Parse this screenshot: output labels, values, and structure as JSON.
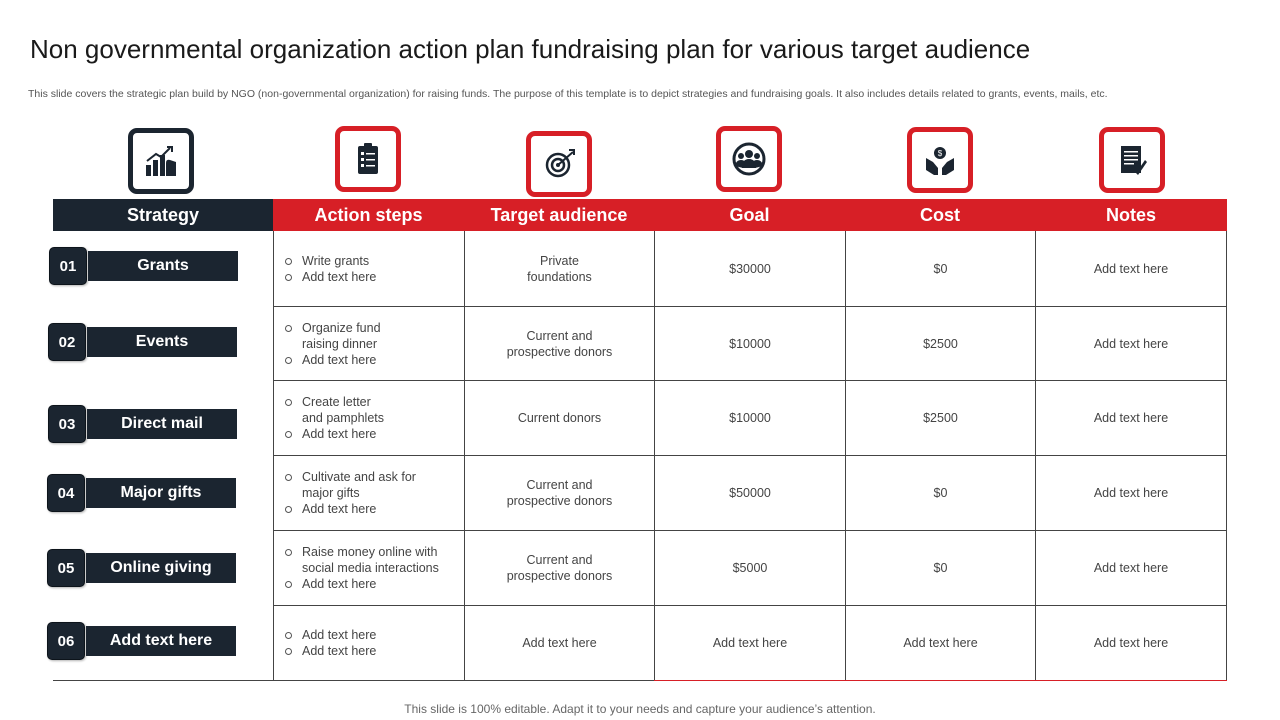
{
  "title": "Non governmental organization action plan fundraising plan for various target audience",
  "subtitle": "This slide covers the strategic plan build by NGO (non-governmental organization) for raising funds. The purpose of this template is to depict strategies and fundraising goals. It also includes details related to grants, events, mails, etc.",
  "icons": [
    "growth-chart-icon",
    "checklist-icon",
    "target-icon",
    "team-icon",
    "money-hands-icon",
    "notes-icon"
  ],
  "headers": {
    "strategy": "Strategy",
    "action_steps": "Action steps",
    "target_audience": "Target audience",
    "goal": "Goal",
    "cost": "Cost",
    "notes": "Notes"
  },
  "rows": [
    {
      "num": "01",
      "strategy": "Grants",
      "steps": [
        "Write grants",
        "Add text here"
      ],
      "audience": "Private\nfoundations",
      "goal": "$30000",
      "cost": "$0",
      "notes": "Add text here"
    },
    {
      "num": "02",
      "strategy": "Events",
      "steps": [
        "Organize fund\nraising dinner",
        "Add text here"
      ],
      "audience": "Current  and\nprospective  donors",
      "goal": "$10000",
      "cost": "$2500",
      "notes": "Add text here"
    },
    {
      "num": "03",
      "strategy": "Direct mail",
      "steps": [
        "Create letter\nand pamphlets",
        "Add text here"
      ],
      "audience": "Current  donors",
      "goal": "$10000",
      "cost": "$2500",
      "notes": "Add text here"
    },
    {
      "num": "04",
      "strategy": "Major gifts",
      "steps": [
        "Cultivate  and  ask for\nmajor gifts",
        "Add text here"
      ],
      "audience": "Current  and\nprospective  donors",
      "goal": "$50000",
      "cost": "$0",
      "notes": "Add text here"
    },
    {
      "num": "05",
      "strategy": "Online giving",
      "steps": [
        "Raise money online with\nsocial media interactions",
        "Add text here"
      ],
      "audience": "Current  and\nprospective  donors",
      "goal": "$5000",
      "cost": "$0",
      "notes": "Add text here"
    },
    {
      "num": "06",
      "strategy": "Add text here",
      "steps": [
        "Add text here",
        "Add text here"
      ],
      "audience": "Add text here",
      "goal": "Add text here",
      "cost": "Add text here",
      "notes": "Add text here"
    }
  ],
  "footer": "This slide is 100% editable. Adapt it to your needs and capture your audience’s attention.",
  "colors": {
    "accent": "#d71f26",
    "dark": "#1b2530"
  }
}
